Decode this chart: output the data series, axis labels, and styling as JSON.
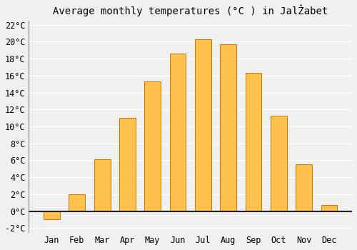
{
  "months": [
    "Jan",
    "Feb",
    "Mar",
    "Apr",
    "May",
    "Jun",
    "Jul",
    "Aug",
    "Sep",
    "Oct",
    "Nov",
    "Dec"
  ],
  "values": [
    -1.0,
    2.0,
    6.1,
    11.0,
    15.3,
    18.6,
    20.3,
    19.7,
    16.3,
    11.3,
    5.5,
    0.7
  ],
  "bar_color": "#FFC04C",
  "edge_color": "#C87800",
  "title": "Average monthly temperatures (°C ) in JalŽabet",
  "title_fontsize": 10,
  "tick_fontsize": 8.5,
  "ylim": [
    -2.5,
    22.5
  ],
  "yticks": [
    -2,
    0,
    2,
    4,
    6,
    8,
    10,
    12,
    14,
    16,
    18,
    20,
    22
  ],
  "background_color": "#f0f0f0",
  "plot_bg_color": "#f0f0f0",
  "grid_color": "#ffffff",
  "zero_line_color": "#222222"
}
